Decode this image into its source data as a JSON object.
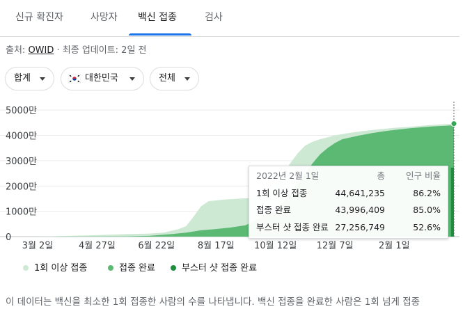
{
  "tabs": [
    {
      "label": "신규 확진자",
      "active": false
    },
    {
      "label": "사망자",
      "active": false
    },
    {
      "label": "백신 접종",
      "active": true
    },
    {
      "label": "검사",
      "active": false
    }
  ],
  "source": {
    "prefix": "출처: ",
    "link": "OWID",
    "suffix": " · 최종 업데이트: 2일 전"
  },
  "filters": {
    "aggregate": "합계",
    "country": "대한민국",
    "country_flag_icon": "korea-flag-icon",
    "scope": "전체"
  },
  "colors": {
    "at_least_one": "#cde8d3",
    "fully": "#5bb974",
    "booster": "#1e8e3e",
    "tab_active": "#1a73e8"
  },
  "chart_data": {
    "type": "area",
    "categories": [
      "3월 2일",
      "4월 27일",
      "6월 22일",
      "8월 17일",
      "10월 12일",
      "12월 7일",
      "2월 1일"
    ],
    "y_ticks": [
      "0",
      "1000만",
      "2000만",
      "3000만",
      "4000만",
      "5000만"
    ],
    "ylim": [
      0,
      55000000
    ],
    "grid": true,
    "legend_position": "bottom",
    "series": [
      {
        "name": "1회 이상 접종",
        "color": "#cde8d3",
        "points": [
          [
            0,
            0
          ],
          [
            3,
            250000
          ],
          [
            6,
            400000
          ],
          [
            9,
            700000
          ],
          [
            12,
            1000000
          ],
          [
            15,
            1200000
          ],
          [
            17,
            1600000
          ],
          [
            19,
            3000000
          ],
          [
            20,
            4200000
          ],
          [
            21,
            8000000
          ],
          [
            22,
            12000000
          ],
          [
            23,
            14000000
          ],
          [
            25,
            14600000
          ],
          [
            27,
            15000000
          ],
          [
            29,
            15300000
          ],
          [
            30,
            15800000
          ],
          [
            31,
            18000000
          ],
          [
            32,
            21000000
          ],
          [
            33,
            25000000
          ],
          [
            34,
            29000000
          ],
          [
            35,
            33000000
          ],
          [
            36,
            36000000
          ],
          [
            37,
            37500000
          ],
          [
            38,
            38500000
          ],
          [
            40,
            40000000
          ],
          [
            42,
            41000000
          ],
          [
            44,
            41800000
          ],
          [
            46,
            42400000
          ],
          [
            48,
            43000000
          ],
          [
            50,
            43400000
          ],
          [
            52,
            43900000
          ],
          [
            54,
            44300000
          ],
          [
            56,
            44641235
          ]
        ]
      },
      {
        "name": "접종 완료",
        "color": "#5bb974",
        "points": [
          [
            0,
            0
          ],
          [
            6,
            50000
          ],
          [
            12,
            100000
          ],
          [
            15,
            300000
          ],
          [
            18,
            1000000
          ],
          [
            20,
            1600000
          ],
          [
            22,
            2500000
          ],
          [
            24,
            3000000
          ],
          [
            26,
            3600000
          ],
          [
            28,
            4500000
          ],
          [
            29,
            6000000
          ],
          [
            30,
            7500000
          ],
          [
            31,
            9000000
          ],
          [
            32,
            10500000
          ],
          [
            33,
            13500000
          ],
          [
            34,
            17000000
          ],
          [
            35,
            21000000
          ],
          [
            36,
            25000000
          ],
          [
            37,
            29000000
          ],
          [
            38,
            32500000
          ],
          [
            39,
            35000000
          ],
          [
            40,
            37000000
          ],
          [
            41,
            38500000
          ],
          [
            43,
            39800000
          ],
          [
            45,
            40900000
          ],
          [
            47,
            41800000
          ],
          [
            50,
            42800000
          ],
          [
            53,
            43500000
          ],
          [
            56,
            43996409
          ]
        ]
      },
      {
        "name": "부스터 샷 접종 완료",
        "color": "#1e8e3e",
        "points": [
          [
            55.6,
            0
          ],
          [
            55.6,
            27256749
          ],
          [
            56,
            27256749
          ]
        ]
      }
    ]
  },
  "tooltip": {
    "date": "2022년 2월 1일",
    "col_total": "총",
    "col_ratio": "인구 비율",
    "rows": [
      {
        "label": "1회 이상 접종",
        "total": "44,641,235",
        "ratio": "86.2%"
      },
      {
        "label": "접종 완료",
        "total": "43,996,409",
        "ratio": "85.0%"
      },
      {
        "label": "부스터 샷 접종 완료",
        "total": "27,256,749",
        "ratio": "52.6%"
      }
    ]
  },
  "footnote": "이 데이터는 백신을 최소한 1회 접종한 사람의 수를 나타냅니다. 백신 접종을 완료한 사람은 1회 넘게 접종"
}
